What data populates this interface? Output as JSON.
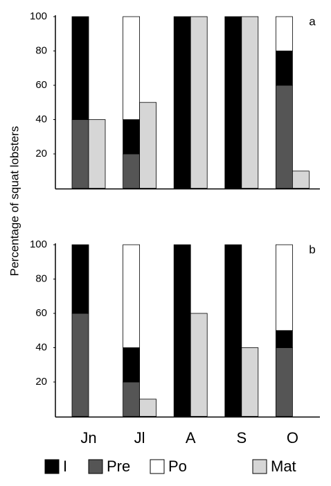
{
  "chart_data": {
    "type": "bar",
    "ylabel": "Percentage of squat lobsters",
    "categories": [
      "Jn",
      "Jl",
      "A",
      "S",
      "O"
    ],
    "ylim": [
      0,
      100
    ],
    "yticks": [
      20,
      40,
      60,
      80,
      100
    ],
    "series": [
      {
        "name": "I",
        "color": "#000000"
      },
      {
        "name": "Pre",
        "color": "#555555"
      },
      {
        "name": "Po",
        "color": "#ffffff"
      },
      {
        "name": "Mat",
        "color": "#d6d6d6"
      }
    ],
    "panels": [
      {
        "label": "a",
        "values": [
          [
            60,
            20,
            100,
            100,
            20
          ],
          [
            40,
            20,
            0,
            0,
            60
          ],
          [
            0,
            60,
            0,
            0,
            20
          ],
          [
            40,
            50,
            100,
            100,
            10
          ]
        ]
      },
      {
        "label": "b",
        "values": [
          [
            40,
            20,
            100,
            100,
            10
          ],
          [
            60,
            20,
            0,
            0,
            40
          ],
          [
            0,
            60,
            0,
            0,
            50
          ],
          [
            0,
            10,
            60,
            40,
            0
          ]
        ]
      }
    ]
  }
}
